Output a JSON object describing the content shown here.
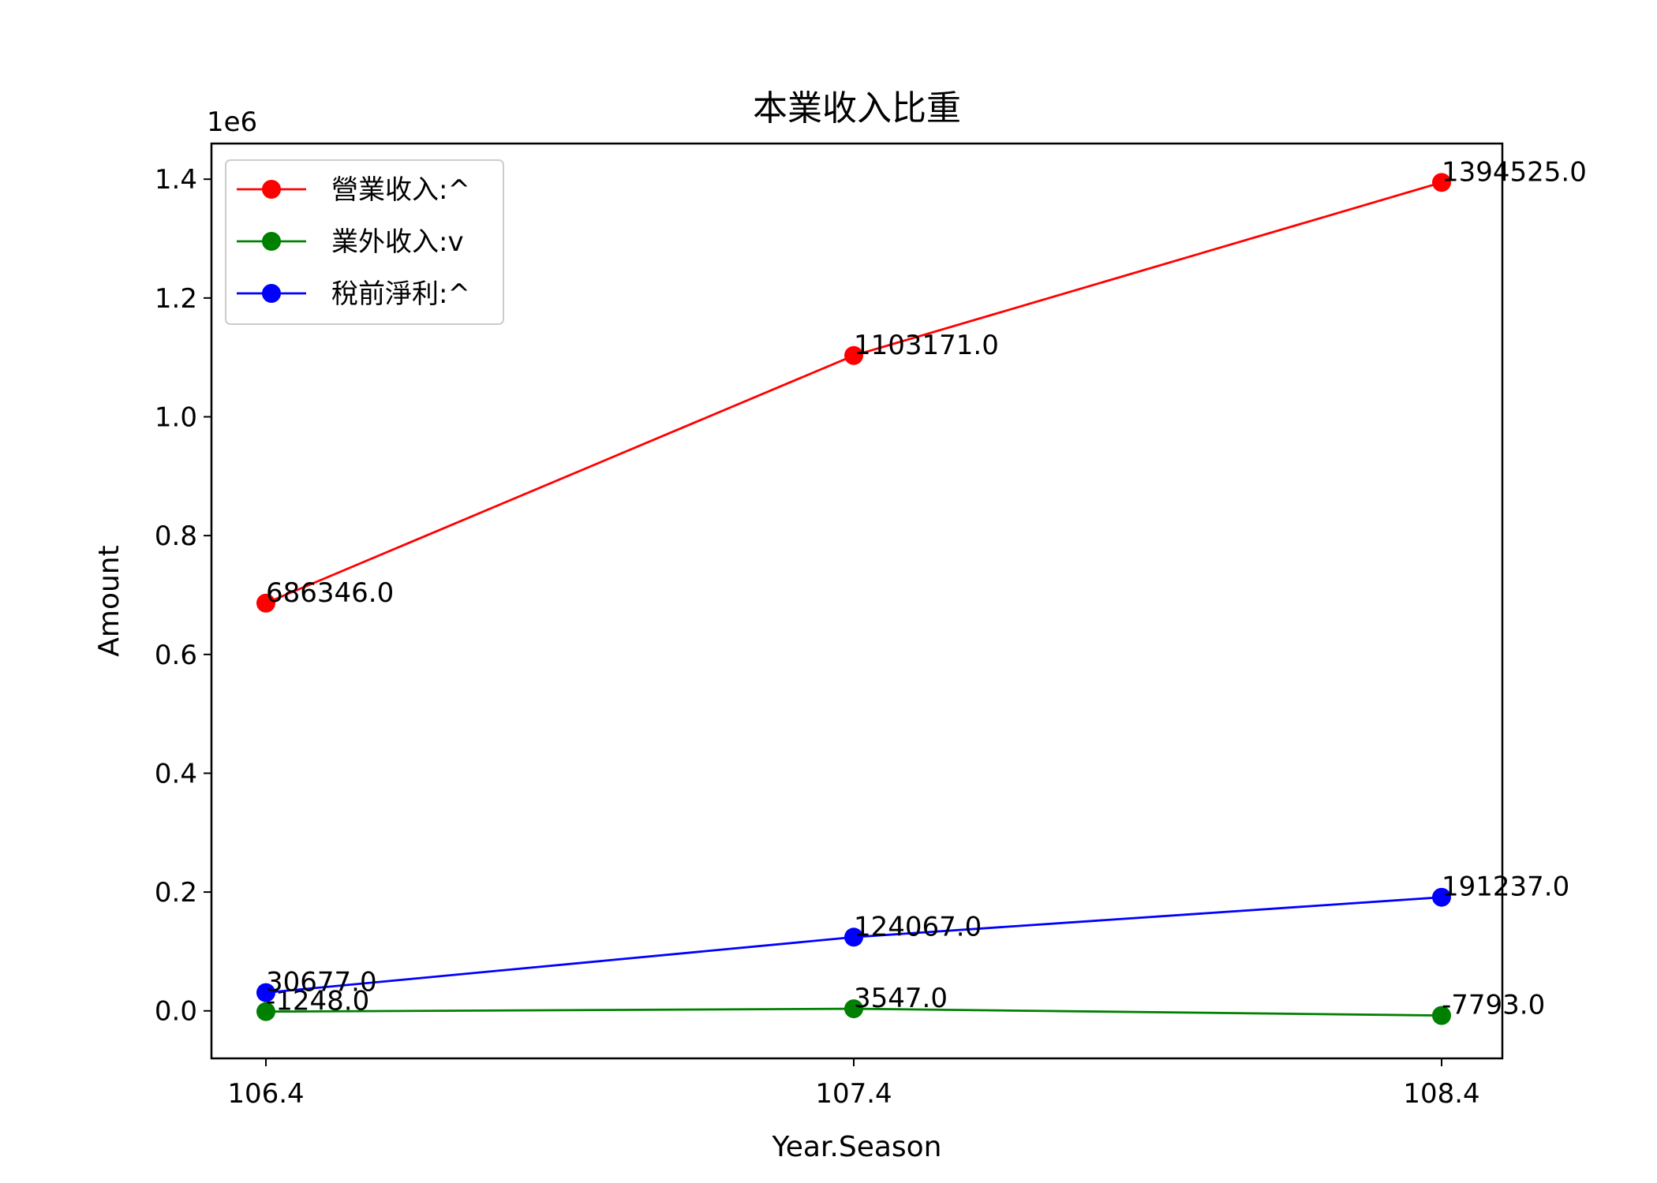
{
  "chart_data": {
    "type": "line",
    "title": "本業收入比重",
    "xlabel": "Year.Season",
    "ylabel": "Amount",
    "y_offset_label": "1e6",
    "categories": [
      "106.4",
      "107.4",
      "108.4"
    ],
    "ylim": [
      -0.08,
      1.46
    ],
    "yticks": [
      "0.0",
      "0.2",
      "0.4",
      "0.6",
      "0.8",
      "1.0",
      "1.2",
      "1.4"
    ],
    "grid": false,
    "legend": "top-left",
    "series": [
      {
        "name": "營業收入:^",
        "color": "#ff0000",
        "values": [
          686346.0,
          1103171.0,
          1394525.0
        ],
        "labels": [
          "686346.0",
          "1103171.0",
          "1394525.0"
        ]
      },
      {
        "name": "業外收入:v",
        "color": "#008000",
        "values": [
          -1248.0,
          3547.0,
          -7793.0
        ],
        "labels": [
          "-1248.0",
          "3547.0",
          "-7793.0"
        ]
      },
      {
        "name": "稅前淨利:^",
        "color": "#0000ff",
        "values": [
          30677.0,
          124067.0,
          191237.0
        ],
        "labels": [
          "30677.0",
          "124067.0",
          "191237.0"
        ]
      }
    ]
  }
}
